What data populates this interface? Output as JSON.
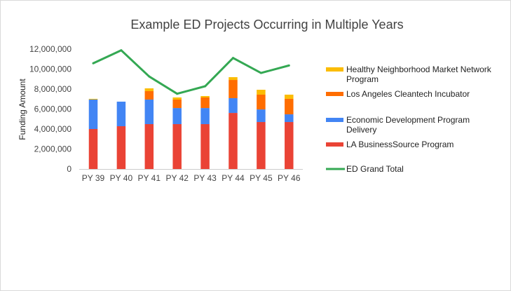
{
  "chart_data": {
    "type": "bar",
    "stacked": true,
    "title": "Example ED Projects Occurring in Multiple Years",
    "xlabel": "",
    "ylabel": "Funding Amount",
    "ylim": [
      0,
      12000000
    ],
    "yticks": [
      0,
      2000000,
      4000000,
      6000000,
      8000000,
      10000000,
      12000000
    ],
    "ytick_labels": [
      "0",
      "2,000,000",
      "4,000,000",
      "6,000,000",
      "8,000,000",
      "10,000,000",
      "12,000,000"
    ],
    "grid": false,
    "legend_position": "right",
    "categories": [
      "PY 39",
      "PY 40",
      "PY 41",
      "PY 42",
      "PY 43",
      "PY 44",
      "PY 45",
      "PY 46"
    ],
    "series": [
      {
        "name": "LA BusinessSource Program",
        "type": "bar",
        "color": "#ea4335",
        "values": [
          4000000,
          4280000,
          4490000,
          4490000,
          4490000,
          5610000,
          4700000,
          4700000
        ]
      },
      {
        "name": "Economic Development Program Delivery",
        "type": "bar",
        "color": "#4285f4",
        "values": [
          2950000,
          2460000,
          2460000,
          1610000,
          1610000,
          1480000,
          1260000,
          770000
        ]
      },
      {
        "name": "Los Angeles Cleantech Incubator",
        "type": "bar",
        "color": "#ff6d01",
        "values": [
          0,
          0,
          840000,
          850000,
          1060000,
          1820000,
          1480000,
          1550000
        ]
      },
      {
        "name": "Healthy Neighborhood Market Network Program",
        "type": "bar",
        "color": "#fbbc04",
        "values": [
          70000,
          0,
          280000,
          210000,
          140000,
          280000,
          490000,
          420000
        ]
      },
      {
        "name": "ED Grand Total",
        "type": "line",
        "color": "#34a853",
        "values": [
          10580000,
          11880000,
          9260000,
          7530000,
          8280000,
          11110000,
          9610000,
          10360000
        ]
      }
    ],
    "legend": [
      {
        "label_lines": [
          "Healthy Neighborhood Market Network",
          "Program"
        ],
        "series": "Healthy Neighborhood Market Network Program",
        "color": "#fbbc04",
        "kind": "bar"
      },
      {
        "label_lines": [
          "Los Angeles Cleantech Incubator"
        ],
        "series": "Los Angeles Cleantech Incubator",
        "color": "#ff6d01",
        "kind": "bar"
      },
      {
        "label_lines": [
          "Economic Development Program",
          "Delivery"
        ],
        "series": "Economic Development Program Delivery",
        "color": "#4285f4",
        "kind": "bar"
      },
      {
        "label_lines": [
          "LA BusinessSource Program"
        ],
        "series": "LA BusinessSource Program",
        "color": "#ea4335",
        "kind": "bar"
      },
      {
        "label_lines": [
          "ED Grand Total"
        ],
        "series": "ED Grand Total",
        "color": "#34a853",
        "kind": "line"
      }
    ]
  }
}
